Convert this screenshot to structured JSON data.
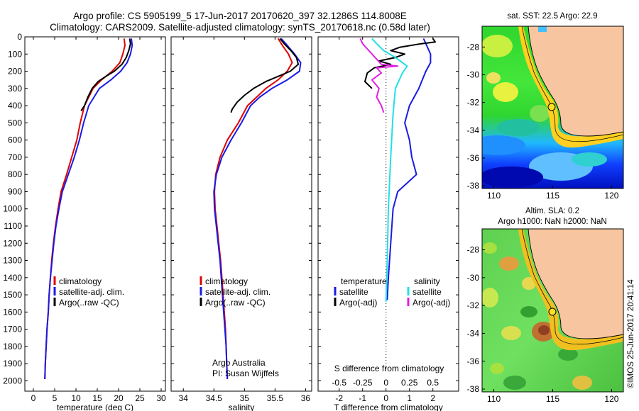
{
  "header": {
    "title_line1": "Argo profile: CS 5905199_5 17-Jun-2017 20170620_397 32.1286S 114.8008E",
    "title_line2": "Climatology: CARS2009. Satellite-adjusted climatology: synTS_20170618.nc (0.58d later)"
  },
  "credit": "©IMOS 25-Jun-2017 20:41:14",
  "colors": {
    "climatology": "#e00000",
    "satellite": "#1a1ae6",
    "argo": "#000000",
    "satellite_s": "#22e0e6",
    "argo_s": "#e020e0"
  },
  "chart_data": [
    {
      "type": "line",
      "xlabel": "temperature (deg C)",
      "ylabel": "",
      "xlim": [
        -2,
        31
      ],
      "ylim": [
        2060,
        0
      ],
      "xticks": [
        "0",
        "5",
        "10",
        "15",
        "20",
        "25",
        "30"
      ],
      "yticks": [
        "0",
        "100",
        "200",
        "300",
        "400",
        "500",
        "600",
        "700",
        "800",
        "900",
        "1000",
        "1100",
        "1200",
        "1300",
        "1400",
        "1500",
        "1600",
        "1700",
        "1800",
        "1900",
        "2000"
      ],
      "legend": {
        "position": "lower-middle",
        "entries": [
          "climatology",
          "satellite-adj. clim.",
          "Argo(..raw -QC)"
        ]
      },
      "series": [
        {
          "name": "climatology",
          "color": "#e00000",
          "points": [
            [
              21.3,
              10
            ],
            [
              21.5,
              50
            ],
            [
              21.0,
              100
            ],
            [
              20.3,
              150
            ],
            [
              18.5,
              200
            ],
            [
              16.0,
              250
            ],
            [
              14.0,
              300
            ],
            [
              12.0,
              400
            ],
            [
              11.0,
              500
            ],
            [
              10.2,
              600
            ],
            [
              9.0,
              700
            ],
            [
              7.8,
              800
            ],
            [
              6.5,
              900
            ],
            [
              5.8,
              1000
            ],
            [
              5.2,
              1100
            ],
            [
              4.7,
              1200
            ],
            [
              4.3,
              1300
            ],
            [
              4.0,
              1400
            ],
            [
              3.7,
              1500
            ],
            [
              3.5,
              1600
            ],
            [
              3.2,
              1700
            ],
            [
              3.0,
              1800
            ],
            [
              2.8,
              1900
            ],
            [
              2.7,
              1990
            ]
          ]
        },
        {
          "name": "satellite-adj. clim.",
          "color": "#1a1ae6",
          "points": [
            [
              23.0,
              10
            ],
            [
              23.2,
              50
            ],
            [
              22.8,
              100
            ],
            [
              22.0,
              150
            ],
            [
              20.5,
              200
            ],
            [
              18.2,
              250
            ],
            [
              15.5,
              300
            ],
            [
              13.0,
              400
            ],
            [
              11.8,
              500
            ],
            [
              10.8,
              600
            ],
            [
              9.6,
              700
            ],
            [
              8.2,
              800
            ],
            [
              6.8,
              900
            ],
            [
              6.0,
              1000
            ],
            [
              5.3,
              1100
            ],
            [
              4.8,
              1200
            ],
            [
              4.4,
              1300
            ],
            [
              4.0,
              1400
            ],
            [
              3.7,
              1500
            ],
            [
              3.5,
              1600
            ],
            [
              3.2,
              1700
            ],
            [
              3.0,
              1800
            ],
            [
              2.8,
              1900
            ],
            [
              2.7,
              1990
            ]
          ]
        },
        {
          "name": "Argo(..raw -QC)",
          "color": "#000000",
          "points": [
            [
              22.6,
              10
            ],
            [
              22.8,
              40
            ],
            [
              22.4,
              80
            ],
            [
              21.8,
              120
            ],
            [
              20.8,
              160
            ],
            [
              19.0,
              200
            ],
            [
              17.0,
              230
            ],
            [
              15.2,
              260
            ],
            [
              13.8,
              300
            ],
            [
              12.8,
              350
            ],
            [
              12.0,
              400
            ],
            [
              11.2,
              430
            ]
          ]
        }
      ]
    },
    {
      "type": "line",
      "xlabel": "salinity",
      "ylabel": "",
      "xlim": [
        33.8,
        36.1
      ],
      "ylim": [
        2060,
        0
      ],
      "xticks": [
        "34",
        "34.5",
        "35",
        "35.5",
        "36"
      ],
      "legend": {
        "position": "lower-middle",
        "entries": [
          "climatology",
          "satellite-adj. clim.",
          "Argo(..raw -QC)"
        ]
      },
      "annotations": [
        "Argo Australia",
        "PI: Susan Wijffels"
      ],
      "series": [
        {
          "name": "climatology",
          "color": "#e00000",
          "points": [
            [
              35.55,
              10
            ],
            [
              35.62,
              50
            ],
            [
              35.72,
              100
            ],
            [
              35.78,
              150
            ],
            [
              35.7,
              200
            ],
            [
              35.55,
              250
            ],
            [
              35.35,
              300
            ],
            [
              35.2,
              350
            ],
            [
              35.05,
              400
            ],
            [
              34.9,
              500
            ],
            [
              34.72,
              600
            ],
            [
              34.6,
              700
            ],
            [
              34.53,
              800
            ],
            [
              34.51,
              900
            ],
            [
              34.52,
              1000
            ],
            [
              34.55,
              1100
            ],
            [
              34.58,
              1200
            ],
            [
              34.61,
              1300
            ],
            [
              34.63,
              1400
            ],
            [
              34.65,
              1500
            ],
            [
              34.67,
              1600
            ],
            [
              34.69,
              1700
            ],
            [
              34.7,
              1800
            ],
            [
              34.71,
              1900
            ],
            [
              34.72,
              1990
            ]
          ]
        },
        {
          "name": "satellite-adj. clim.",
          "color": "#1a1ae6",
          "points": [
            [
              35.6,
              10
            ],
            [
              35.7,
              50
            ],
            [
              35.82,
              100
            ],
            [
              35.92,
              150
            ],
            [
              35.9,
              200
            ],
            [
              35.7,
              250
            ],
            [
              35.45,
              300
            ],
            [
              35.25,
              350
            ],
            [
              35.1,
              400
            ],
            [
              34.95,
              500
            ],
            [
              34.78,
              600
            ],
            [
              34.63,
              700
            ],
            [
              34.54,
              800
            ],
            [
              34.5,
              900
            ],
            [
              34.51,
              1000
            ],
            [
              34.54,
              1100
            ],
            [
              34.57,
              1200
            ],
            [
              34.6,
              1300
            ],
            [
              34.62,
              1400
            ],
            [
              34.64,
              1500
            ],
            [
              34.66,
              1600
            ],
            [
              34.68,
              1700
            ],
            [
              34.7,
              1800
            ],
            [
              34.71,
              1900
            ],
            [
              34.72,
              1990
            ]
          ]
        },
        {
          "name": "Argo(..raw -QC)",
          "color": "#000000",
          "points": [
            [
              35.58,
              10
            ],
            [
              35.65,
              40
            ],
            [
              35.76,
              80
            ],
            [
              35.85,
              120
            ],
            [
              35.88,
              160
            ],
            [
              35.75,
              200
            ],
            [
              35.55,
              230
            ],
            [
              35.35,
              260
            ],
            [
              35.15,
              300
            ],
            [
              35.0,
              340
            ],
            [
              34.88,
              380
            ],
            [
              34.8,
              420
            ],
            [
              34.78,
              440
            ]
          ]
        }
      ]
    },
    {
      "type": "line",
      "xlabel": "T difference from climatology",
      "ylabel": "",
      "xlim": [
        -2.9,
        3.1
      ],
      "ylim": [
        2060,
        0
      ],
      "xticks": [
        "-2",
        "-1",
        "0",
        "1",
        "2"
      ],
      "top_axis": {
        "label": "S difference from climatology",
        "ticks": [
          "-0.5",
          "-0.25",
          "0",
          "0.25",
          "0.5"
        ]
      },
      "legend": {
        "position": "lower-middle",
        "entries": [
          "temperature",
          "satellite",
          "Argo(-adj)",
          "salinity",
          "satellite",
          "Argo(-adj)"
        ]
      },
      "series": [
        {
          "name": "satellite",
          "color": "#1a1ae6",
          "points": [
            [
              1.6,
              10
            ],
            [
              1.7,
              40
            ],
            [
              1.8,
              70
            ],
            [
              1.9,
              100
            ],
            [
              1.9,
              150
            ],
            [
              1.7,
              200
            ],
            [
              1.4,
              300
            ],
            [
              1.0,
              400
            ],
            [
              0.8,
              500
            ],
            [
              1.0,
              600
            ],
            [
              1.1,
              700
            ],
            [
              1.3,
              800
            ],
            [
              0.5,
              900
            ],
            [
              0.3,
              1000
            ],
            [
              0.2,
              1200
            ],
            [
              0.1,
              1400
            ],
            [
              0.05,
              1530
            ]
          ]
        },
        {
          "name": "Argo(-adj)",
          "color": "#000000",
          "points": [
            [
              2.0,
              10
            ],
            [
              2.1,
              30
            ],
            [
              1.5,
              40
            ],
            [
              0.6,
              60
            ],
            [
              0.2,
              80
            ],
            [
              0.8,
              100
            ],
            [
              0.4,
              120
            ],
            [
              -0.3,
              140
            ],
            [
              0.2,
              160
            ],
            [
              -0.5,
              180
            ],
            [
              -0.8,
              210
            ],
            [
              -0.9,
              260
            ],
            [
              -0.6,
              300
            ]
          ]
        },
        {
          "name": "satellite",
          "color": "#22e0e6",
          "points": [
            [
              -0.6,
              10
            ],
            [
              -0.4,
              40
            ],
            [
              -0.1,
              80
            ],
            [
              0.4,
              120
            ],
            [
              0.9,
              170
            ],
            [
              0.7,
              210
            ],
            [
              0.4,
              300
            ],
            [
              0.3,
              450
            ],
            [
              0.2,
              700
            ],
            [
              0.1,
              1000
            ],
            [
              0.05,
              1300
            ],
            [
              0.0,
              1540
            ]
          ]
        },
        {
          "name": "Argo(-adj)",
          "color": "#e020e0",
          "points": [
            [
              -1.1,
              10
            ],
            [
              -1.0,
              40
            ],
            [
              -0.8,
              70
            ],
            [
              -0.2,
              160
            ],
            [
              0.5,
              170
            ],
            [
              -0.4,
              180
            ],
            [
              -0.2,
              210
            ],
            [
              -0.6,
              250
            ],
            [
              -0.3,
              300
            ],
            [
              -0.4,
              350
            ],
            [
              -0.2,
              400
            ],
            [
              -0.1,
              440
            ]
          ]
        }
      ]
    },
    {
      "type": "heatmap",
      "title": "sat. SST: 22.5 Argo: 22.9",
      "xlim": [
        109,
        121
      ],
      "ylim": [
        -38.2,
        -26.5
      ],
      "xticks": [
        "110",
        "115",
        "120"
      ],
      "yticks": [
        "-28",
        "-30",
        "-32",
        "-34",
        "-36",
        "-38"
      ],
      "marker": {
        "lon": 114.8008,
        "lat": -32.1286
      }
    },
    {
      "type": "heatmap",
      "title": "Altim. SLA: 0.2",
      "subtitle": "Argo h1000: NaN h2000: NaN",
      "xlim": [
        109,
        121
      ],
      "ylim": [
        -38.2,
        -26.5
      ],
      "xticks": [
        "110",
        "115",
        "120"
      ],
      "yticks": [
        "-28",
        "-30",
        "-32",
        "-34",
        "-36",
        "-38"
      ],
      "marker": {
        "lon": 114.8008,
        "lat": -32.1286
      }
    }
  ]
}
